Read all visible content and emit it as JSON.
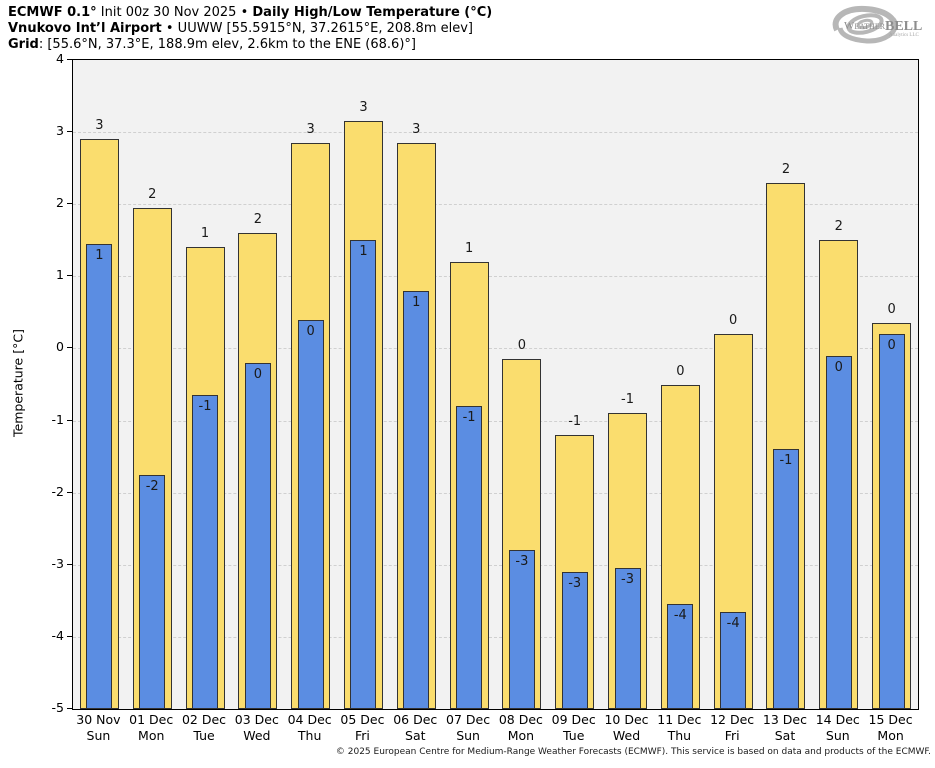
{
  "header": {
    "line1": [
      {
        "text": "ECMWF 0.1°",
        "bold": true
      },
      {
        "text": " Init 00z 30 Nov 2025 • ",
        "bold": false
      },
      {
        "text": "Daily High/Low Temperature (°C)",
        "bold": true
      }
    ],
    "line2": [
      {
        "text": "Vnukovo Int’l Airport",
        "bold": true
      },
      {
        "text": " • UUWW [55.5915°N, 37.2615°E, 208.8m elev]",
        "bold": false
      }
    ],
    "line3": [
      {
        "text": "Grid",
        "bold": true
      },
      {
        "text": ": [55.6°N, 37.3°E, 188.9m elev, 2.6km to the ENE (68.6)°]",
        "bold": false
      }
    ]
  },
  "logo": {
    "weather": "Weather",
    "bell": "BELL",
    "sub": "Analytics LLC"
  },
  "footer": {
    "copyright": "© 2025 European Centre for Medium-Range Weather Forecasts (ECMWF). This service is based on data and products of the ECMWF."
  },
  "chart_data": {
    "type": "bar",
    "title": "ECMWF 0.1° Init 00z 30 Nov 2025 • Daily High/Low Temperature (°C)",
    "subtitle": "Vnukovo Int’l Airport • UUWW [55.5915°N, 37.2615°E, 208.8m elev]",
    "grid_info": "Grid: [55.6°N, 37.3°E, 188.9m elev, 2.6km to the ENE (68.6)°]",
    "ylabel": "Temperature [°C]",
    "xlabel": "",
    "ylim": [
      -5,
      4
    ],
    "yticks": [
      4,
      3,
      2,
      1,
      0,
      -1,
      -2,
      -3,
      -4,
      -5
    ],
    "grid": true,
    "legend_position": "none",
    "bar_baseline": -5,
    "categories": [
      {
        "date": "30 Nov",
        "day": "Sun"
      },
      {
        "date": "01 Dec",
        "day": "Mon"
      },
      {
        "date": "02 Dec",
        "day": "Tue"
      },
      {
        "date": "03 Dec",
        "day": "Wed"
      },
      {
        "date": "04 Dec",
        "day": "Thu"
      },
      {
        "date": "05 Dec",
        "day": "Fri"
      },
      {
        "date": "06 Dec",
        "day": "Sat"
      },
      {
        "date": "07 Dec",
        "day": "Sun"
      },
      {
        "date": "08 Dec",
        "day": "Mon"
      },
      {
        "date": "09 Dec",
        "day": "Tue"
      },
      {
        "date": "10 Dec",
        "day": "Wed"
      },
      {
        "date": "11 Dec",
        "day": "Thu"
      },
      {
        "date": "12 Dec",
        "day": "Fri"
      },
      {
        "date": "13 Dec",
        "day": "Sat"
      },
      {
        "date": "14 Dec",
        "day": "Sun"
      },
      {
        "date": "15 Dec",
        "day": "Mon"
      }
    ],
    "series": [
      {
        "name": "Daily High",
        "color": "#fadd6e",
        "values": [
          2.9,
          1.95,
          1.4,
          1.6,
          2.85,
          3.15,
          2.85,
          1.2,
          -0.15,
          -1.2,
          -0.9,
          -0.5,
          0.2,
          2.3,
          1.5,
          0.35
        ],
        "labels": [
          "3",
          "2",
          "1",
          "2",
          "3",
          "3",
          "3",
          "1",
          "0",
          "-1",
          "-1",
          "0",
          "0",
          "2",
          "2",
          "0"
        ]
      },
      {
        "name": "Daily Low",
        "color": "#5b8de2",
        "values": [
          1.45,
          -1.75,
          -0.65,
          -0.2,
          0.4,
          1.5,
          0.8,
          -0.8,
          -2.8,
          -3.1,
          -3.05,
          -3.55,
          -3.65,
          -1.4,
          -0.1,
          0.2
        ],
        "labels": [
          "1",
          "-2",
          "-1",
          "0",
          "0",
          "1",
          "1",
          "-1",
          "-3",
          "-3",
          "-3",
          "-4",
          "-4",
          "-1",
          "0",
          "0"
        ]
      }
    ],
    "colors": {
      "plot_background": "#f2f2f2",
      "gridline": "#d0d0d0",
      "bar_border": "#333333",
      "axis": "#000000"
    }
  }
}
